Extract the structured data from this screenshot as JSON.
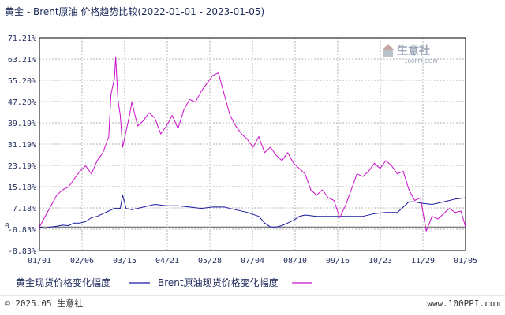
{
  "chart_data": {
    "type": "line",
    "title": "黄金 - Brent原油 价格趋势比较(2022-01-01 - 2023-01-05)",
    "y_ticks": [
      "71.21%",
      "63.21%",
      "55.20%",
      "47.20%",
      "39.19%",
      "31.19%",
      "23.19%",
      "15.18%",
      "7.18%",
      "-0.83%",
      "-8.83%"
    ],
    "y_values": [
      71.21,
      63.21,
      55.2,
      47.2,
      39.19,
      31.19,
      23.19,
      15.18,
      7.18,
      -0.83,
      -8.83
    ],
    "ylim": [
      -8.83,
      71.21
    ],
    "x_ticks": [
      "01/01",
      "02/06",
      "03/15",
      "04/21",
      "05/28",
      "07/04",
      "08/10",
      "09/16",
      "10/23",
      "11/29",
      "01/05"
    ],
    "zero_label": "0",
    "grid": true,
    "series": [
      {
        "name": "黄金现货价格变化幅度",
        "color": "#1a1aa0",
        "x": [
          0,
          5,
          10,
          15,
          20,
          25,
          30,
          35,
          40,
          45,
          50,
          55,
          60,
          65,
          70,
          72,
          75,
          80,
          90,
          100,
          110,
          120,
          130,
          140,
          150,
          160,
          170,
          180,
          190,
          195,
          200,
          205,
          210,
          215,
          220,
          225,
          230,
          240,
          250,
          260,
          270,
          280,
          290,
          300,
          310,
          320,
          325,
          330,
          340,
          350,
          360,
          369
        ],
        "y": [
          0.0,
          -0.5,
          0.0,
          0.3,
          0.7,
          0.5,
          1.5,
          1.5,
          2.0,
          3.5,
          4.0,
          5.0,
          6.0,
          7.0,
          7.0,
          12.0,
          7.0,
          6.5,
          7.5,
          8.5,
          8.0,
          8.0,
          7.5,
          7.0,
          7.5,
          7.5,
          6.5,
          5.5,
          4.0,
          1.5,
          0.0,
          0.0,
          0.5,
          1.5,
          2.5,
          4.0,
          4.5,
          4.0,
          4.0,
          4.0,
          4.0,
          4.0,
          5.0,
          5.5,
          5.5,
          9.5,
          9.5,
          9.0,
          8.5,
          9.5,
          10.5,
          11.0
        ]
      },
      {
        "name": "Brent原油现货价格变化幅度",
        "color": "#cc10cc",
        "x": [
          0,
          5,
          10,
          15,
          20,
          25,
          30,
          35,
          40,
          45,
          50,
          55,
          60,
          62,
          65,
          66,
          68,
          70,
          72,
          75,
          78,
          80,
          85,
          90,
          95,
          100,
          105,
          110,
          115,
          120,
          125,
          130,
          135,
          140,
          145,
          150,
          155,
          160,
          165,
          170,
          175,
          180,
          185,
          190,
          195,
          200,
          205,
          210,
          215,
          220,
          225,
          230,
          235,
          240,
          245,
          250,
          255,
          260,
          265,
          270,
          275,
          280,
          285,
          290,
          295,
          300,
          305,
          310,
          315,
          320,
          325,
          330,
          335,
          340,
          345,
          350,
          355,
          360,
          365,
          369
        ],
        "y": [
          0.0,
          4.0,
          8.0,
          12.0,
          14.0,
          15.0,
          18.0,
          21.0,
          23.0,
          20.0,
          25.0,
          28.0,
          34.0,
          50.0,
          56.0,
          64.0,
          48.0,
          42.0,
          30.0,
          36.0,
          42.0,
          47.0,
          38.0,
          40.0,
          43.0,
          41.0,
          35.0,
          38.0,
          42.0,
          37.0,
          44.0,
          48.0,
          47.0,
          51.0,
          54.0,
          57.0,
          58.0,
          50.0,
          42.0,
          38.0,
          35.0,
          33.0,
          30.0,
          34.0,
          28.0,
          30.0,
          27.0,
          25.0,
          28.0,
          24.0,
          22.0,
          20.0,
          14.0,
          12.0,
          14.0,
          11.0,
          10.0,
          3.5,
          8.0,
          14.0,
          20.0,
          19.0,
          21.0,
          24.0,
          22.0,
          25.0,
          23.0,
          20.0,
          21.0,
          14.0,
          10.0,
          11.0,
          -1.5,
          4.0,
          3.0,
          5.0,
          7.0,
          5.5,
          6.0,
          0.0
        ]
      }
    ],
    "legend_position": "bottom"
  },
  "footer": {
    "copyright": "© 2025.05 生意社",
    "url": "www.100PPI.com"
  },
  "watermark": {
    "name": "生意社",
    "url": "100PPI.COM"
  }
}
